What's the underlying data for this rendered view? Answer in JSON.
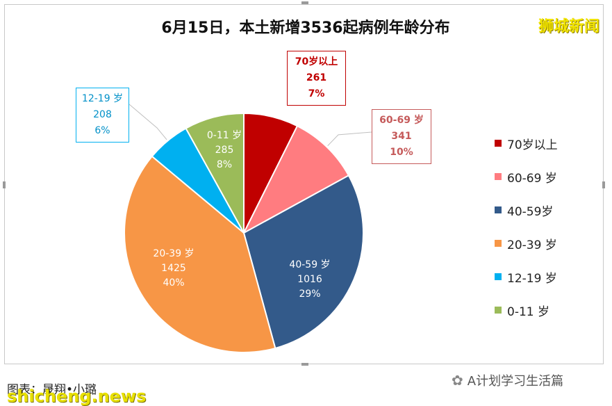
{
  "header": {
    "title": "6月15日，本土新增3536起病例年龄分布",
    "brand": "狮城新闻"
  },
  "chart_data": {
    "type": "pie",
    "title": "6月15日，本土新增3536起病例年龄分布",
    "total": 3536,
    "slices": [
      {
        "name": "70岁以上",
        "label": "70岁以上",
        "value": 261,
        "pct": "7%",
        "color": "#c00000"
      },
      {
        "name": "60-69 岁",
        "label": "60-69 岁",
        "value": 341,
        "pct": "10%",
        "color": "#ff7c80"
      },
      {
        "name": "40-59岁",
        "label": "40-59 岁",
        "value": 1016,
        "pct": "29%",
        "color": "#335a8a"
      },
      {
        "name": "20-39 岁",
        "label": "20-39 岁",
        "value": 1425,
        "pct": "40%",
        "color": "#f79646"
      },
      {
        "name": "12-19 岁",
        "label": "12-19 岁",
        "value": 208,
        "pct": "6%",
        "color": "#00b0f0"
      },
      {
        "name": "0-11 岁",
        "label": "0-11 岁",
        "value": 285,
        "pct": "8%",
        "color": "#9bbb59"
      }
    ],
    "legend_position": "right"
  },
  "footer": {
    "credit": "图表：晟翔•小璐",
    "watermark": "shicheng.news",
    "wechat_account": "A计划学习生活篇",
    "wechat_icon": "wechat-icon"
  }
}
